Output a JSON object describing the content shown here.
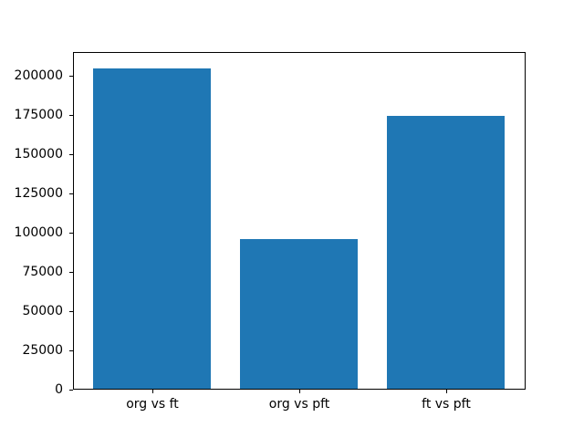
{
  "figure": {
    "background": "#ffffff",
    "frame_color": "#000000",
    "text_color": "#000000"
  },
  "chart_data": {
    "type": "bar",
    "title": "",
    "xlabel": "",
    "ylabel": "",
    "categories": [
      "org vs ft",
      "org vs pft",
      "ft vs pft"
    ],
    "values": [
      204600,
      95900,
      174000
    ],
    "bar_color": "#1f77b4",
    "bar_width_fraction": 0.8,
    "ylim": [
      0,
      214900
    ],
    "yticks": [
      0,
      25000,
      50000,
      75000,
      100000,
      125000,
      150000,
      175000,
      200000
    ],
    "ytick_labels": [
      "0",
      "25000",
      "50000",
      "75000",
      "100000",
      "125000",
      "150000",
      "175000",
      "200000"
    ],
    "grid": false,
    "legend": null
  }
}
